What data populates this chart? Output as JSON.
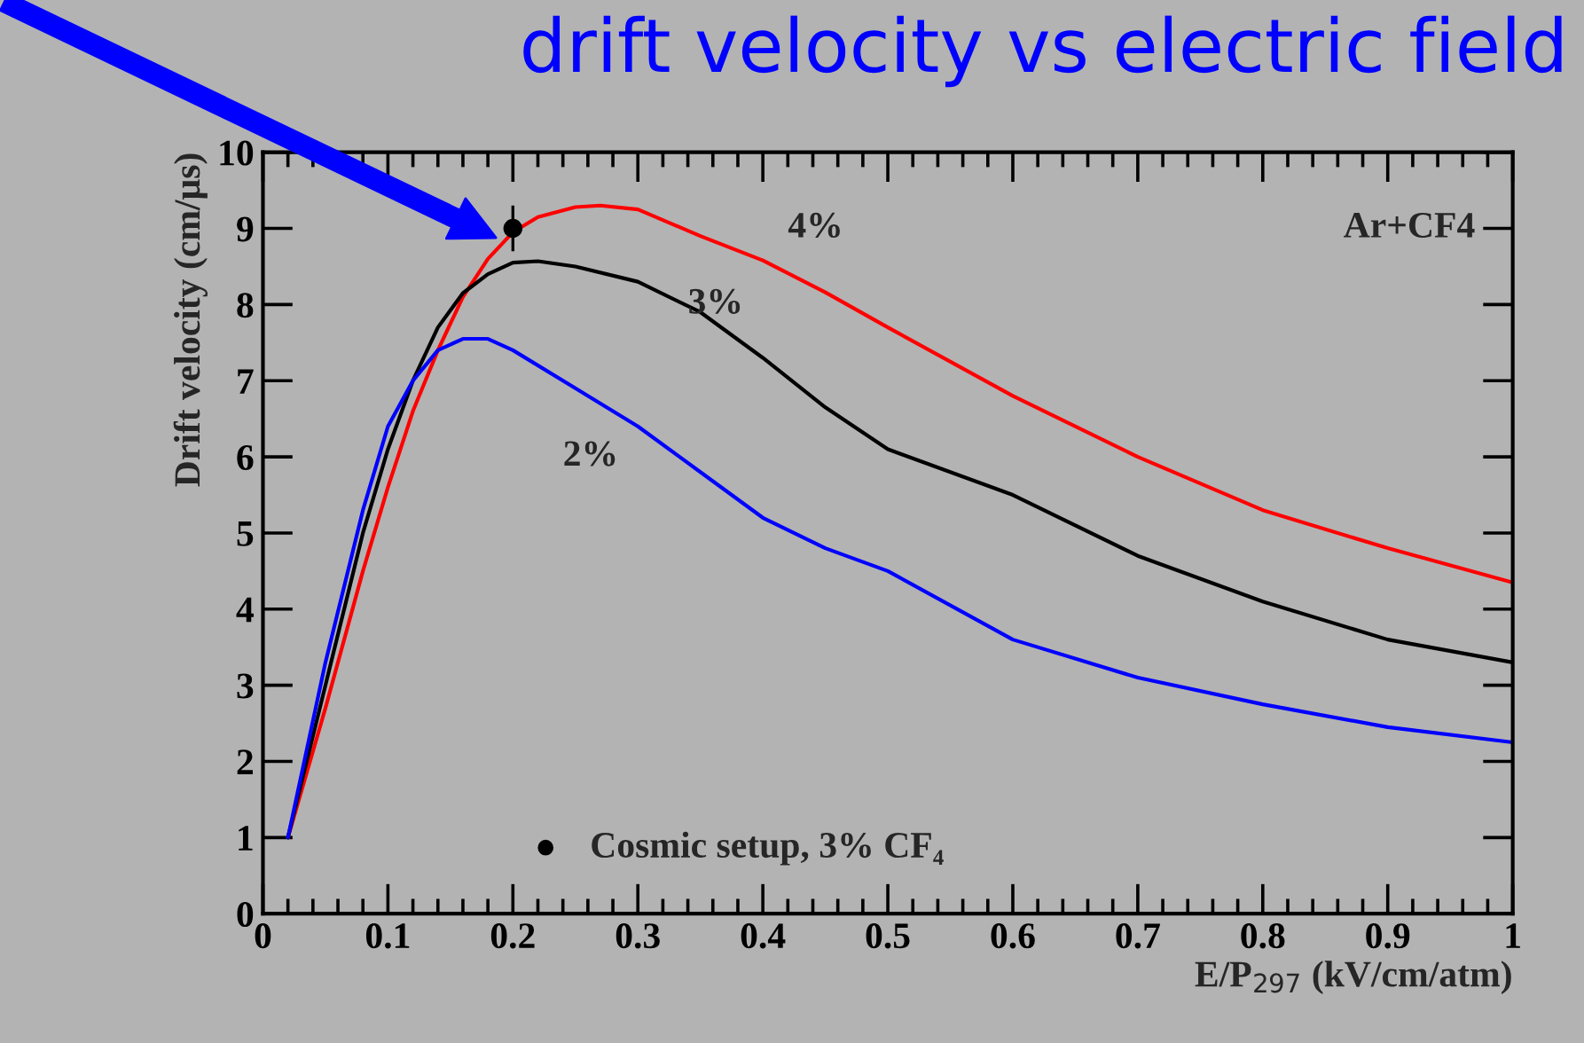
{
  "chart_data": {
    "type": "line",
    "title": "drift velocity vs electric field",
    "xlabel": "E/P$_{297}$ (kV/cm/atm)",
    "ylabel": "Drift velocity (cm/μs)",
    "xlim": [
      0,
      1
    ],
    "ylim": [
      0,
      10
    ],
    "xticks": [
      0,
      0.1,
      0.2,
      0.3,
      0.4,
      0.5,
      0.6,
      0.7,
      0.8,
      0.9,
      1
    ],
    "yticks": [
      0,
      1,
      2,
      3,
      4,
      5,
      6,
      7,
      8,
      9,
      10
    ],
    "grid": false,
    "legend": "bottom left",
    "series": [
      {
        "color": "#ff0000",
        "x": [
          0.02,
          0.05,
          0.08,
          0.1,
          0.12,
          0.14,
          0.16,
          0.18,
          0.2,
          0.22,
          0.25,
          0.27,
          0.3,
          0.35,
          0.4,
          0.45,
          0.5,
          0.6,
          0.7,
          0.8,
          0.9,
          1.0
        ],
        "values": [
          1.0,
          2.7,
          4.5,
          5.6,
          6.6,
          7.4,
          8.1,
          8.6,
          8.95,
          9.15,
          9.28,
          9.3,
          9.25,
          8.9,
          8.58,
          8.16,
          7.7,
          6.8,
          6.0,
          5.3,
          4.8,
          4.35
        ]
      },
      {
        "color": "#000000",
        "x": [
          0.02,
          0.05,
          0.08,
          0.1,
          0.12,
          0.14,
          0.16,
          0.18,
          0.2,
          0.22,
          0.25,
          0.3,
          0.35,
          0.4,
          0.45,
          0.5,
          0.6,
          0.7,
          0.8,
          0.9,
          1.0
        ],
        "values": [
          1.0,
          3.0,
          5.0,
          6.1,
          7.0,
          7.7,
          8.15,
          8.4,
          8.55,
          8.57,
          8.5,
          8.3,
          7.9,
          7.3,
          6.65,
          6.1,
          5.5,
          4.7,
          4.1,
          3.6,
          3.3
        ]
      },
      {
        "color": "#0000ff",
        "x": [
          0.02,
          0.05,
          0.08,
          0.1,
          0.12,
          0.14,
          0.16,
          0.18,
          0.2,
          0.25,
          0.3,
          0.35,
          0.4,
          0.45,
          0.5,
          0.6,
          0.7,
          0.8,
          0.9,
          1.0
        ],
        "values": [
          1.0,
          3.3,
          5.3,
          6.4,
          7.0,
          7.4,
          7.55,
          7.55,
          7.4,
          6.9,
          6.4,
          5.8,
          5.2,
          4.8,
          4.5,
          3.6,
          3.1,
          2.75,
          2.45,
          2.25
        ]
      },
      {
        "type": "scatter",
        "name": "Cosmic setup, 3% CF₄",
        "color": "#000000",
        "marker": "circle",
        "x": [
          0.2
        ],
        "values": [
          9.0
        ],
        "errors": [
          0.3
        ]
      }
    ],
    "annotations": [
      "4%",
      "3%",
      "2%",
      "Ar+CF4"
    ]
  }
}
